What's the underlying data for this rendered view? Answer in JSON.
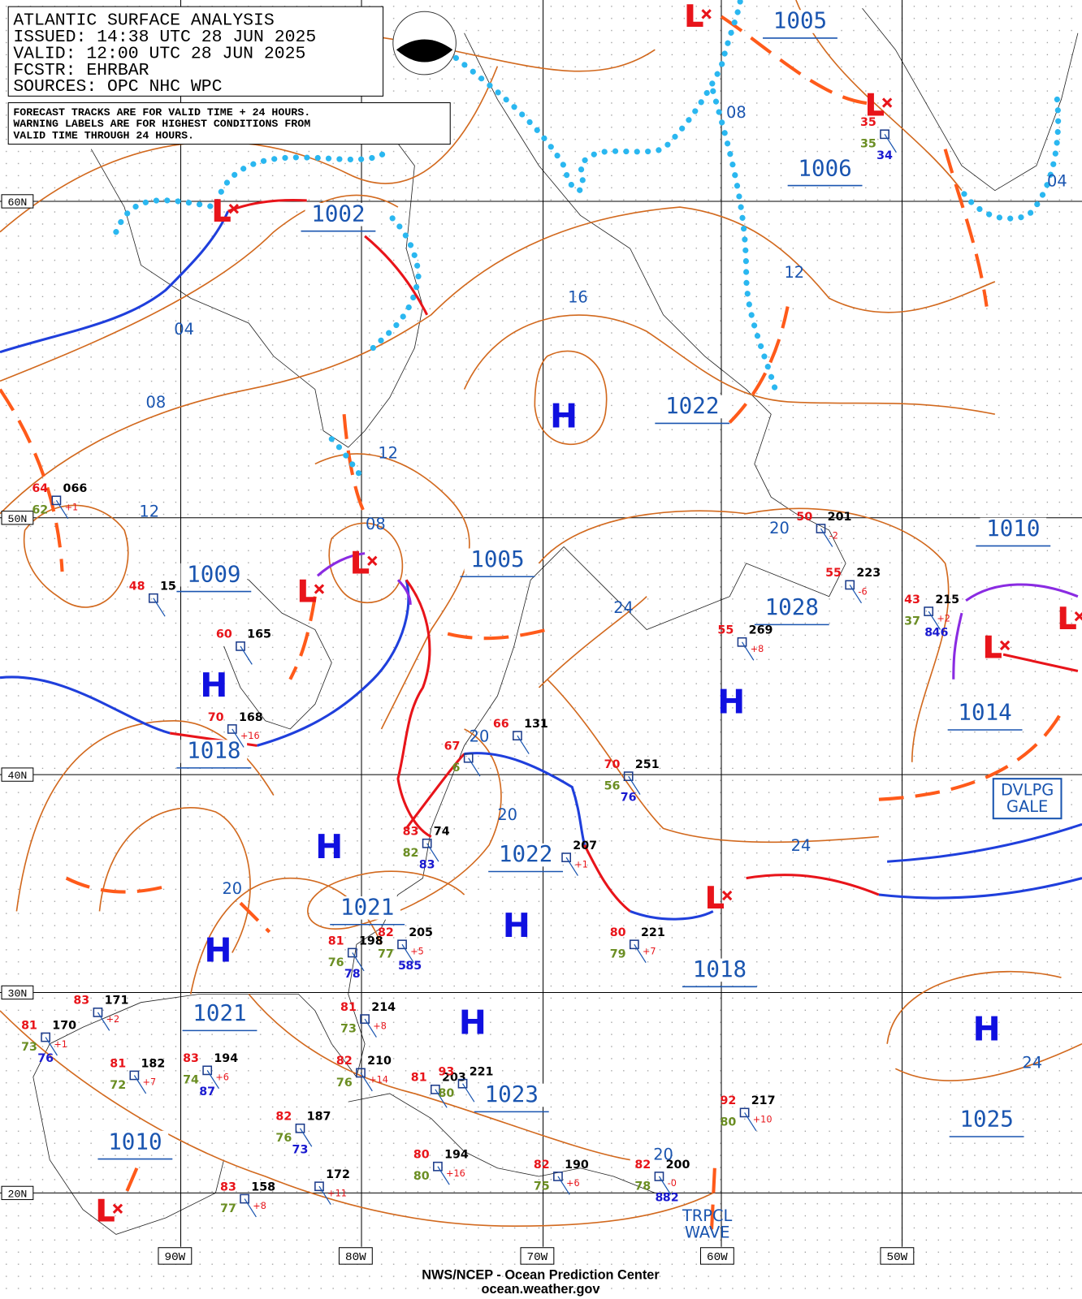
{
  "header": {
    "title": "ATLANTIC SURFACE ANALYSIS",
    "lines": [
      "ISSUED: 14:38 UTC 28 JUN 2025",
      "VALID:  12:00 UTC 28 JUN 2025",
      "FCSTR:  EHRBAR",
      "SOURCES: OPC NHC WPC"
    ]
  },
  "note": [
    "FORECAST TRACKS ARE FOR VALID TIME + 24 HOURS.",
    "WARNING LABELS ARE FOR HIGHEST CONDITIONS FROM",
    "VALID TIME THROUGH 24 HOURS."
  ],
  "latitudes": [
    "60N",
    "50N",
    "40N",
    "30N",
    "20N"
  ],
  "longitudes": [
    "90W",
    "80W",
    "70W",
    "60W",
    "50W"
  ],
  "pressure_labels": [
    "1005",
    "1006",
    "1002",
    "1022",
    "1005",
    "1009",
    "1010",
    "1028",
    "1014",
    "1018",
    "1022",
    "1021",
    "1018",
    "1021",
    "1023",
    "1025",
    "1010"
  ],
  "isobar_labels": [
    "08",
    "04",
    "12",
    "16",
    "04",
    "08",
    "12",
    "08",
    "12",
    "24",
    "20",
    "20",
    "20",
    "24",
    "20",
    "24",
    "20"
  ],
  "highs": [
    "H",
    "H",
    "H",
    "H",
    "H",
    "H",
    "H",
    "H"
  ],
  "lows": [
    "L",
    "L",
    "L",
    "L",
    "L",
    "L",
    "L",
    "L",
    "L"
  ],
  "stations": [
    {
      "t": "64",
      "p": "066",
      "tend": "+1",
      "d": "62"
    },
    {
      "t": "48",
      "p": "15"
    },
    {
      "t": "60",
      "p": "165"
    },
    {
      "t": "70",
      "p": "168",
      "tend": "+16"
    },
    {
      "t": "66",
      "p": "131"
    },
    {
      "t": "67",
      "d": "6"
    },
    {
      "t": "83",
      "p": "74",
      "d": "82",
      "other": [
        "83"
      ]
    },
    {
      "p": "207",
      "tend": "+1"
    },
    {
      "t": "70",
      "p": "251",
      "d": "56",
      "other": [
        "76"
      ]
    },
    {
      "t": "50",
      "p": "201",
      "tend": "-2"
    },
    {
      "t": "55",
      "p": "223",
      "tend": "-6"
    },
    {
      "t": "55",
      "p": "269",
      "tend": "+8"
    },
    {
      "t": "43",
      "p": "215",
      "tend": "+2",
      "d": "37",
      "other": [
        "8",
        "46"
      ]
    },
    {
      "t": "35",
      "d": "35",
      "other": [
        "34"
      ]
    },
    {
      "t": "80",
      "p": "221",
      "tend": "+7",
      "d": "79"
    },
    {
      "t": "82",
      "p": "205",
      "tend": "+5",
      "d": "77",
      "other": [
        "5",
        "85"
      ]
    },
    {
      "t": "81",
      "p": "198",
      "d": "76",
      "other": [
        "78"
      ]
    },
    {
      "t": "81",
      "p": "214",
      "tend": "+8",
      "d": "73"
    },
    {
      "t": "82",
      "p": "210",
      "tend": "+14",
      "d": "76"
    },
    {
      "t": "81",
      "p": "203"
    },
    {
      "t": "93",
      "p": "221",
      "d": "80"
    },
    {
      "t": "82",
      "p": "187",
      "d": "76",
      "other": [
        "73"
      ]
    },
    {
      "p": "172",
      "tend": "+11"
    },
    {
      "t": "80",
      "p": "194",
      "tend": "+16",
      "d": "80"
    },
    {
      "t": "82",
      "p": "190",
      "tend": "+6",
      "d": "75"
    },
    {
      "t": "82",
      "p": "200",
      "tend": "-0",
      "d": "78",
      "other": [
        "8",
        "82"
      ]
    },
    {
      "t": "92",
      "p": "217",
      "tend": "+10",
      "d": "80"
    },
    {
      "t": "83",
      "p": "158",
      "tend": "+8",
      "d": "77"
    },
    {
      "t": "83",
      "p": "171",
      "tend": "+2"
    },
    {
      "t": "81",
      "p": "170",
      "tend": "+1",
      "d": "73",
      "other": [
        "76"
      ]
    },
    {
      "t": "81",
      "p": "182",
      "tend": "+7",
      "d": "72"
    },
    {
      "t": "83",
      "p": "194",
      "tend": "+6",
      "d": "74",
      "other": [
        "87"
      ]
    }
  ],
  "annotations": {
    "gale": [
      "DVLPG",
      "GALE"
    ],
    "wave": [
      "TRPCL",
      "WAVE"
    ]
  },
  "footer": [
    "NWS/NCEP - Ocean Prediction Center",
    "ocean.weather.gov"
  ]
}
